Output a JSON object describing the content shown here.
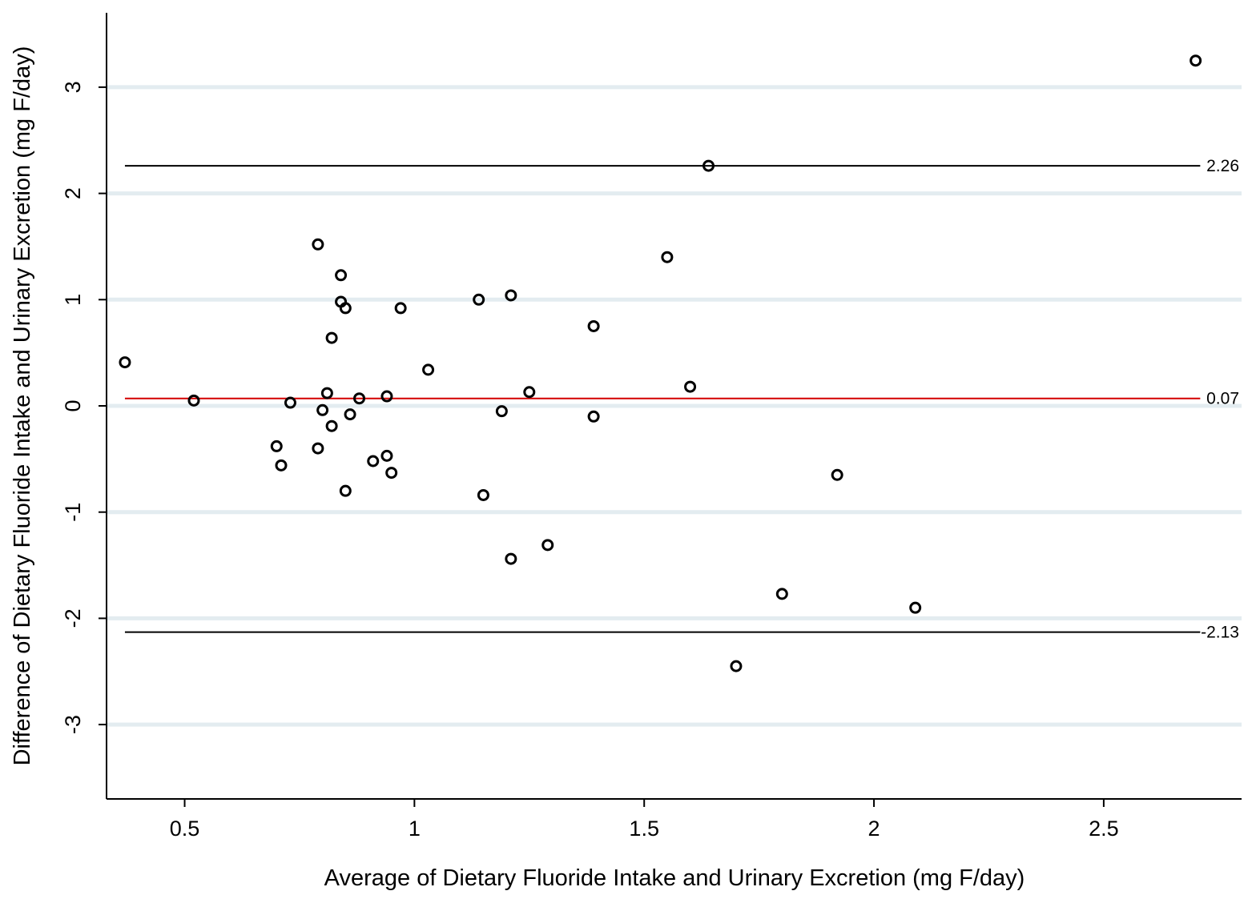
{
  "chart_data": {
    "type": "scatter",
    "title": "",
    "xlabel": "Average of Dietary Fluoride Intake and Urinary Excretion (mg F/day)",
    "ylabel": "Difference of Dietary Fluoride Intake and Urinary Excretion (mg F/day)",
    "xlim": [
      0.33,
      2.8
    ],
    "ylim": [
      -3.7,
      3.7
    ],
    "x_ticks": [
      0.5,
      1,
      1.5,
      2,
      2.5
    ],
    "x_tick_labels": [
      "0.5",
      "1",
      "1.5",
      "2",
      "2.5"
    ],
    "y_ticks": [
      3,
      2,
      1,
      0,
      -1,
      -2,
      -3
    ],
    "y_tick_labels": [
      "3",
      "2",
      "1",
      "0",
      "-1",
      "-2",
      "-3"
    ],
    "grid": "horizontal",
    "grid_color": "#e3ecf0",
    "marker_color": "#000000",
    "reference_lines": [
      {
        "value": 2.26,
        "label": "2.26",
        "color": "#000000"
      },
      {
        "value": 0.07,
        "label": "0.07",
        "color": "#d40000"
      },
      {
        "value": -2.13,
        "label": "-2.13",
        "color": "#000000"
      }
    ],
    "points": [
      {
        "x": 0.37,
        "y": 0.41
      },
      {
        "x": 0.52,
        "y": 0.05
      },
      {
        "x": 0.7,
        "y": -0.38
      },
      {
        "x": 0.71,
        "y": -0.56
      },
      {
        "x": 0.73,
        "y": 0.03
      },
      {
        "x": 0.79,
        "y": -0.4
      },
      {
        "x": 0.79,
        "y": 1.52
      },
      {
        "x": 0.8,
        "y": -0.04
      },
      {
        "x": 0.81,
        "y": 0.12
      },
      {
        "x": 0.82,
        "y": -0.19
      },
      {
        "x": 0.82,
        "y": 0.64
      },
      {
        "x": 0.84,
        "y": 0.98
      },
      {
        "x": 0.84,
        "y": 1.23
      },
      {
        "x": 0.85,
        "y": 0.92
      },
      {
        "x": 0.85,
        "y": -0.8
      },
      {
        "x": 0.86,
        "y": -0.08
      },
      {
        "x": 0.88,
        "y": 0.07
      },
      {
        "x": 0.91,
        "y": -0.52
      },
      {
        "x": 0.94,
        "y": -0.47
      },
      {
        "x": 0.94,
        "y": 0.09
      },
      {
        "x": 0.95,
        "y": -0.63
      },
      {
        "x": 0.97,
        "y": 0.92
      },
      {
        "x": 1.03,
        "y": 0.34
      },
      {
        "x": 1.14,
        "y": 1.0
      },
      {
        "x": 1.15,
        "y": -0.84
      },
      {
        "x": 1.19,
        "y": -0.05
      },
      {
        "x": 1.21,
        "y": 1.04
      },
      {
        "x": 1.21,
        "y": -1.44
      },
      {
        "x": 1.25,
        "y": 0.13
      },
      {
        "x": 1.29,
        "y": -1.31
      },
      {
        "x": 1.39,
        "y": -0.1
      },
      {
        "x": 1.39,
        "y": 0.75
      },
      {
        "x": 1.55,
        "y": 1.4
      },
      {
        "x": 1.6,
        "y": 0.18
      },
      {
        "x": 1.64,
        "y": 2.26
      },
      {
        "x": 1.7,
        "y": -2.45
      },
      {
        "x": 1.8,
        "y": -1.77
      },
      {
        "x": 1.92,
        "y": -0.65
      },
      {
        "x": 2.09,
        "y": -1.9
      },
      {
        "x": 2.7,
        "y": 3.25
      }
    ]
  }
}
